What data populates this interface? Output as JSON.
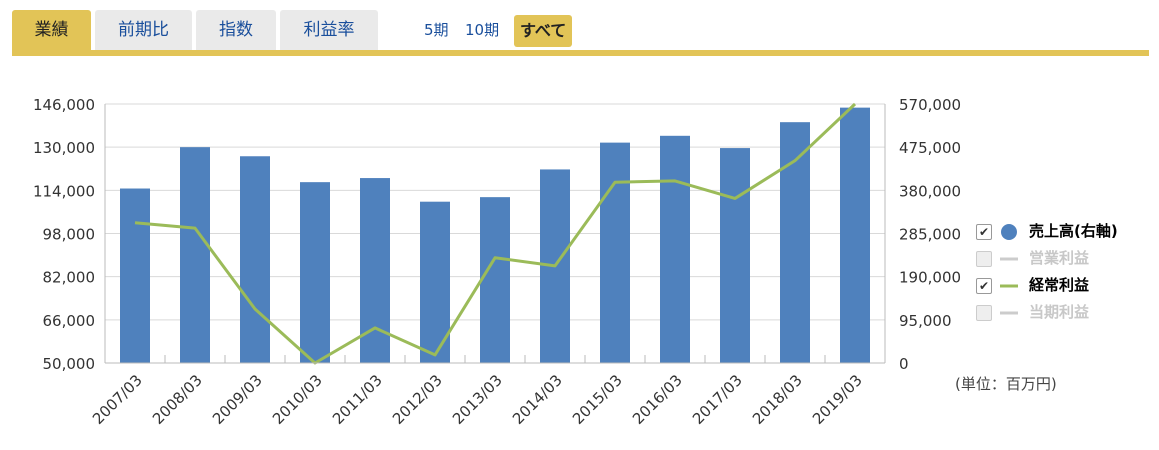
{
  "tabs": [
    {
      "label": "業績",
      "active": true
    },
    {
      "label": "前期比",
      "active": false
    },
    {
      "label": "指数",
      "active": false
    },
    {
      "label": "利益率",
      "active": false
    }
  ],
  "periods": [
    {
      "label": "5期",
      "active": false
    },
    {
      "label": "10期",
      "active": false
    },
    {
      "label": "すべて",
      "active": true
    }
  ],
  "legend": [
    {
      "label": "売上高(右軸)",
      "checked": true,
      "enabled": true,
      "marker": "circle",
      "color": "#4f81bd"
    },
    {
      "label": "営業利益",
      "checked": false,
      "enabled": false,
      "marker": "line",
      "color": "#cccccc"
    },
    {
      "label": "経常利益",
      "checked": true,
      "enabled": true,
      "marker": "line",
      "color": "#9bbb59"
    },
    {
      "label": "当期利益",
      "checked": false,
      "enabled": false,
      "marker": "line",
      "color": "#cccccc"
    }
  ],
  "unit_label": "(単位：百万円)",
  "chart_data": {
    "type": "bar+line",
    "categories": [
      "2007/03",
      "2008/03",
      "2009/03",
      "2010/03",
      "2011/03",
      "2012/03",
      "2013/03",
      "2014/03",
      "2015/03",
      "2016/03",
      "2017/03",
      "2018/03",
      "2019/03"
    ],
    "left_axis": {
      "min": 50000,
      "max": 146000,
      "ticks": [
        "50,000",
        "66,000",
        "82,000",
        "98,000",
        "114,000",
        "130,000",
        "146,000"
      ]
    },
    "right_axis": {
      "min": 0,
      "max": 570000,
      "ticks": [
        "0",
        "95,000",
        "190,000",
        "285,000",
        "380,000",
        "475,000",
        "570,000"
      ]
    },
    "series": [
      {
        "name": "売上高(右軸)",
        "type": "bar",
        "axis": "right",
        "color": "#4f81bd",
        "values": [
          384000,
          475000,
          455000,
          398000,
          407000,
          355000,
          365000,
          426000,
          485000,
          500000,
          473000,
          530000,
          562000
        ]
      },
      {
        "name": "経常利益",
        "type": "line",
        "axis": "left",
        "color": "#9bbb59",
        "values": [
          102000,
          100000,
          70000,
          50000,
          63000,
          53000,
          89000,
          86000,
          117000,
          117500,
          111000,
          125000,
          146000
        ]
      }
    ],
    "grid": true,
    "legend_position": "right"
  }
}
